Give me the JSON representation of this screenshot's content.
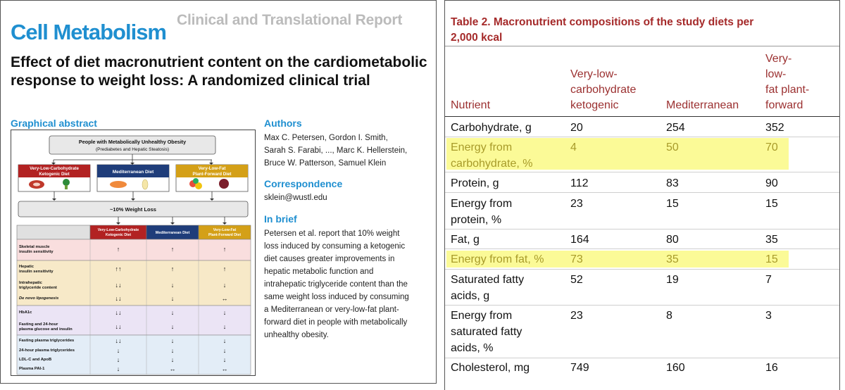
{
  "left": {
    "journal": "Cell Metabolism",
    "report_type": "Clinical and Translational Report",
    "title": "Effect of diet macronutrient content on the cardiometabolic response to weight loss: A randomized clinical trial",
    "graphical_abstract_label": "Graphical abstract",
    "graphic": {
      "population_title": "People with Metabolically Unhealthy Obesity",
      "population_sub": "(Prediabetes and Hepatic Steatosis)",
      "diets": [
        {
          "line1": "Very-Low-Carbohydrate",
          "line2": "Ketogenic Diet",
          "color": "#b22222"
        },
        {
          "line1": "Mediterranean Diet",
          "line2": "",
          "color": "#1f3d7a"
        },
        {
          "line1": "Very-Low-Fat",
          "line2": "Plant-Forward Diet",
          "color": "#d4a017"
        }
      ],
      "weight_loss": "~10% Weight Loss",
      "col_headers": [
        {
          "line1": "Very-Low-Carbohydrate",
          "line2": "Ketogenic Diet"
        },
        {
          "line1": "Mediterranean Diet",
          "line2": ""
        },
        {
          "line1": "Very-Low-Fat",
          "line2": "Plant-Forward Diet"
        }
      ],
      "outcomes": [
        {
          "label": "Skeletal muscle\ninsulin sensitivity",
          "vals": [
            "↑",
            "↑",
            "↑"
          ]
        },
        {
          "label": "Hepatic\ninsulin sensitivity",
          "vals": [
            "↑↑",
            "↑",
            "↑"
          ]
        },
        {
          "label": "Intrahepatic\ntriglyceride content",
          "vals": [
            "↓↓",
            "↓",
            "↓"
          ]
        },
        {
          "label": "De novo lipogenesis",
          "vals": [
            "↓↓",
            "↓",
            "↔"
          ]
        },
        {
          "label": "HbA1c",
          "vals": [
            "↓↓",
            "↓",
            "↓"
          ]
        },
        {
          "label": "Fasting and 24-hour\nplasma glucose and insulin",
          "vals": [
            "↓↓",
            "↓",
            "↓"
          ]
        },
        {
          "label": "Fasting plasma triglycerides",
          "vals": [
            "↓↓",
            "↓",
            "↓"
          ]
        },
        {
          "label": "24-hour plasma triglycerides",
          "vals": [
            "↓",
            "↓",
            "↓"
          ]
        },
        {
          "label": "LDL-C and ApoB",
          "vals": [
            "↓",
            "↓",
            "↓"
          ]
        },
        {
          "label": "Plasma PAI-1",
          "vals": [
            "↓",
            "↔",
            "↔"
          ]
        }
      ]
    },
    "authors_label": "Authors",
    "authors_lines": [
      "Max C. Petersen, Gordon I. Smith,",
      "Sarah S. Farabi, ..., Marc K. Hellerstein,",
      "Bruce W. Patterson, Samuel Klein"
    ],
    "correspondence_label": "Correspondence",
    "correspondence_email": "sklein@wustl.edu",
    "inbrief_label": "In brief",
    "inbrief_lines": [
      "Petersen et al. report that 10% weight",
      "loss induced by consuming a ketogenic",
      "diet causes greater improvements in",
      "hepatic metabolic function and",
      "intrahepatic triglyceride content than the",
      "same weight loss induced by consuming",
      "a Mediterranean or very-low-fat plant-",
      "forward diet in people with metabolically",
      "unhealthy obesity."
    ]
  },
  "right": {
    "caption_line1": "Table 2.  Macronutrient compositions of the study diets per",
    "caption_line2": "2,000 kcal",
    "headers": [
      {
        "lines": [
          "Nutrient"
        ]
      },
      {
        "lines": [
          "Very-low-",
          "carbohydrate",
          "ketogenic"
        ]
      },
      {
        "lines": [
          "Mediterranean"
        ]
      },
      {
        "lines": [
          "Very-",
          "low-",
          "fat plant-",
          "forward"
        ]
      }
    ],
    "rows": [
      {
        "nutrient": "Carbohydrate, g",
        "keto": "20",
        "med": "254",
        "vlf": "352",
        "highlight": false
      },
      {
        "nutrient": "Energy from\ncarbohydrate, %",
        "keto": "4",
        "med": "50",
        "vlf": "70",
        "highlight": true
      },
      {
        "nutrient": "Protein, g",
        "keto": "112",
        "med": "83",
        "vlf": "90",
        "highlight": false
      },
      {
        "nutrient": "Energy from\nprotein, %",
        "keto": "23",
        "med": "15",
        "vlf": "15",
        "highlight": false
      },
      {
        "nutrient": "Fat, g",
        "keto": "164",
        "med": "80",
        "vlf": "35",
        "highlight": false
      },
      {
        "nutrient": "Energy from fat, %",
        "keto": "73",
        "med": "35",
        "vlf": "15",
        "highlight": true
      },
      {
        "nutrient": "Saturated fatty\nacids, g",
        "keto": "52",
        "med": "19",
        "vlf": "7",
        "highlight": false
      },
      {
        "nutrient": "Energy from\nsaturated fatty\nacids, %",
        "keto": "23",
        "med": "8",
        "vlf": "3",
        "highlight": false
      },
      {
        "nutrient": "Cholesterol, mg",
        "keto": "749",
        "med": "160",
        "vlf": "16",
        "highlight": false
      }
    ]
  },
  "colors": {
    "journal_blue": "#1f8fd0",
    "table_red": "#a52a2a",
    "highlight_yellow": "#fbfa97"
  }
}
